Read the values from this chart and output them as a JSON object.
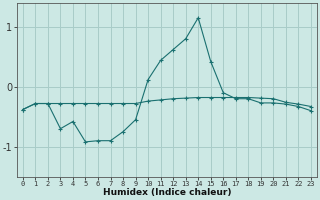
{
  "title": "",
  "xlabel": "Humidex (Indice chaleur)",
  "bg_color": "#cce8e4",
  "line_color": "#1a7070",
  "grid_color": "#a8ccc8",
  "x": [
    0,
    1,
    2,
    3,
    4,
    5,
    6,
    7,
    8,
    9,
    10,
    11,
    12,
    13,
    14,
    15,
    16,
    17,
    18,
    19,
    20,
    21,
    22,
    23
  ],
  "line1": [
    -0.38,
    -0.28,
    -0.28,
    -0.28,
    -0.28,
    -0.28,
    -0.28,
    -0.28,
    -0.28,
    -0.28,
    -0.24,
    -0.22,
    -0.2,
    -0.19,
    -0.18,
    -0.18,
    -0.18,
    -0.18,
    -0.18,
    -0.19,
    -0.2,
    -0.26,
    -0.29,
    -0.33
  ],
  "line2": [
    -0.38,
    -0.28,
    -0.28,
    -0.7,
    -0.58,
    -0.92,
    -0.9,
    -0.9,
    -0.75,
    -0.55,
    0.12,
    0.44,
    0.62,
    0.8,
    1.15,
    0.42,
    -0.1,
    -0.2,
    -0.2,
    -0.27,
    -0.27,
    -0.29,
    -0.33,
    -0.4
  ],
  "ylim": [
    -1.5,
    1.4
  ],
  "yticks": [
    -1,
    0,
    1
  ],
  "xlim": [
    -0.5,
    23.5
  ]
}
